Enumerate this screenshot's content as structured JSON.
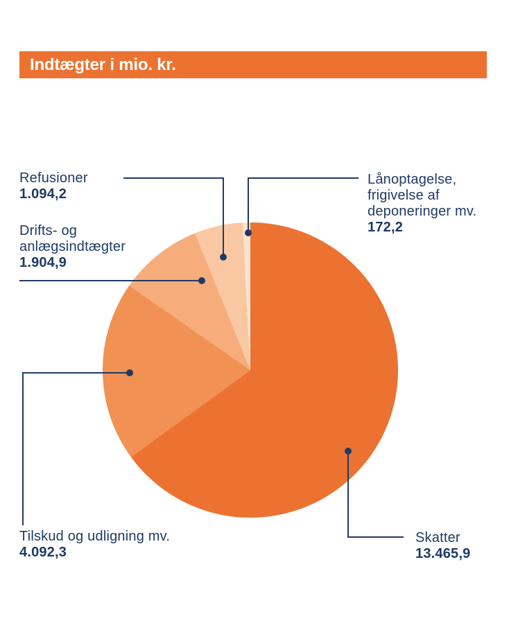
{
  "header": {
    "title": "Indtægter i mio. kr."
  },
  "colors": {
    "background": "#FFFFFF",
    "header_bg": "#EC7231",
    "header_text": "#FFFFFF",
    "label_text": "#1E3A64",
    "leader_line": "#1E3A64"
  },
  "chart_data": {
    "type": "pie",
    "title": "Indtægter i mio. kr.",
    "unit": "mio. kr.",
    "direction": "clockwise",
    "start_angle": 0,
    "total": 20729.5,
    "legend_position": "callouts",
    "slices": [
      {
        "id": "skatter",
        "label": "Skatter",
        "label_lines": [
          "Skatter"
        ],
        "value": 13465.9,
        "display_value": "13.465,9",
        "color": "#EC7231"
      },
      {
        "id": "tilskud",
        "label": "Tilskud og udligning mv.",
        "label_lines": [
          "Tilskud og udligning mv."
        ],
        "value": 4092.3,
        "display_value": "4.092,3",
        "color": "#F19154"
      },
      {
        "id": "drifts",
        "label": "Drifts- og anlægsindtægter",
        "label_lines": [
          "Drifts- og",
          "anlægsindtægter"
        ],
        "value": 1904.9,
        "display_value": "1.904,9",
        "color": "#F6AC7B"
      },
      {
        "id": "refusioner",
        "label": "Refusioner",
        "label_lines": [
          "Refusioner"
        ],
        "value": 1094.2,
        "display_value": "1.094,2",
        "color": "#F9C8A3"
      },
      {
        "id": "lanoptagelse",
        "label": "Lånoptagelse, frigivelse af deponeringer mv.",
        "label_lines": [
          "Lånoptagelse,",
          "frigivelse af",
          "deponeringer mv."
        ],
        "value": 172.2,
        "display_value": "172,2",
        "color": "#FDE3CF"
      }
    ]
  }
}
